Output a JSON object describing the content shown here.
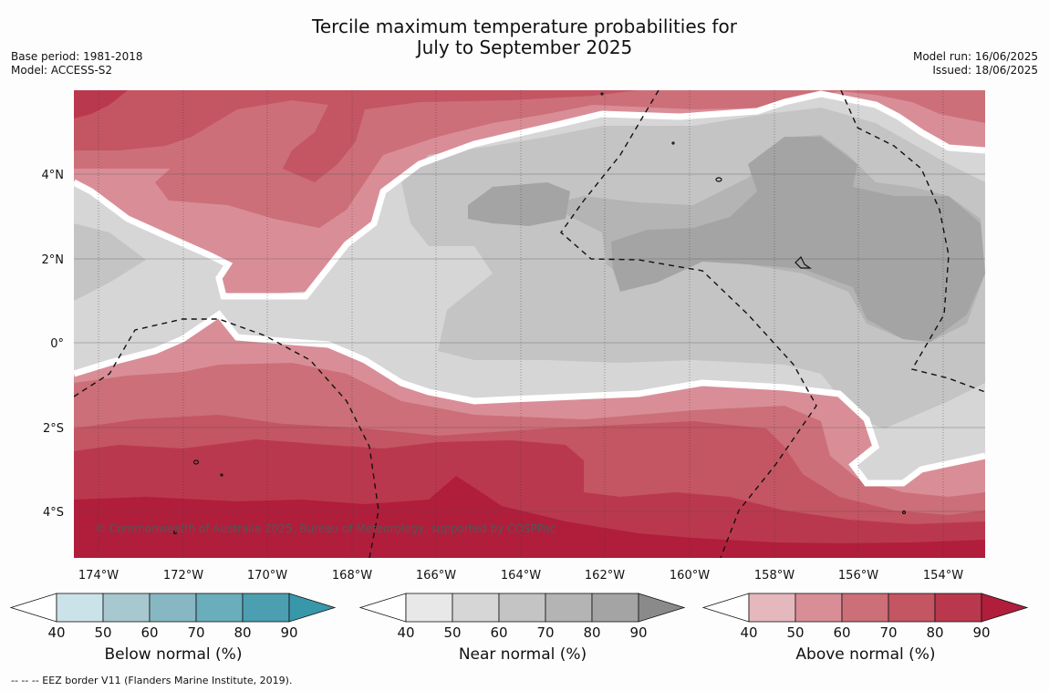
{
  "header": {
    "title_line1": "Tercile maximum temperature probabilities for",
    "title_line2": "July to September 2025",
    "base_period": "Base period: 1981-2018",
    "model": "Model: ACCESS-S2",
    "model_run": "Model run: 16/06/2025",
    "issued": "Issued: 18/06/2025"
  },
  "map": {
    "lon_labels": [
      "174°W",
      "172°W",
      "170°W",
      "168°W",
      "166°W",
      "164°W",
      "162°W",
      "160°W",
      "158°W",
      "156°W",
      "154°W"
    ],
    "lat_labels": [
      "4°N",
      "2°N",
      "0°",
      "2°S",
      "4°S"
    ],
    "copyright": "© Commonwealth of Australia 2025, Bureau of Meteorology, supported by COSPPac"
  },
  "legends": [
    {
      "title": "Below normal (%)",
      "ticks": [
        "40",
        "50",
        "60",
        "70",
        "80",
        "90"
      ],
      "colors": [
        "#ffffff",
        "#cbe2e8",
        "#a7c8ce",
        "#87b7c3",
        "#6aadbb",
        "#4c9fb0",
        "#3997aa"
      ]
    },
    {
      "title": "Near normal (%)",
      "ticks": [
        "40",
        "50",
        "60",
        "70",
        "80",
        "90"
      ],
      "colors": [
        "#ffffff",
        "#e8e8e8",
        "#d6d6d6",
        "#c4c4c4",
        "#b4b4b4",
        "#a4a4a4",
        "#8a8a8a"
      ]
    },
    {
      "title": "Above normal (%)",
      "ticks": [
        "40",
        "50",
        "60",
        "70",
        "80",
        "90"
      ],
      "colors": [
        "#ffffff",
        "#e5b8bd",
        "#d98e97",
        "#cc6f78",
        "#c45562",
        "#ba384d",
        "#b01e3c"
      ]
    }
  ],
  "footnote": "--  --  -- EEZ border V11 (Flanders Marine Institute, 2019)."
}
